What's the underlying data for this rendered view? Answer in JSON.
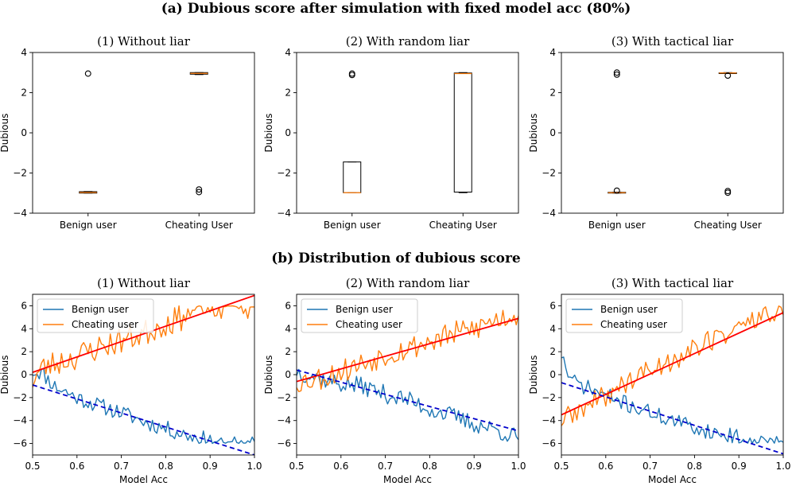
{
  "figure": {
    "title_a": "(a) Dubious score after simulation with fixed model acc (80%)",
    "title_b": "(b) Distribution of dubious score"
  },
  "colors": {
    "benign": "#1f77b4",
    "cheating": "#ff7f0e",
    "median": "#ff7f0e",
    "fit_cheating": "#ff0000",
    "fit_benign": "#0000cc"
  },
  "chart_data": [
    {
      "type": "box",
      "id": "a1",
      "title": "(1) Without liar",
      "xlabel": "",
      "ylabel": "Dubious",
      "ylim": [
        -4,
        4
      ],
      "yticks": [
        "4",
        "2",
        "0",
        "−2",
        "−4"
      ],
      "ytick_values": [
        4,
        2,
        0,
        -2,
        -4
      ],
      "categories": [
        "Benign user",
        "Cheating User"
      ],
      "boxes": [
        {
          "q1": -3.0,
          "median": -2.97,
          "q3": -2.93,
          "whislo": -3.0,
          "whishi": -2.92,
          "fliers": [
            2.95
          ]
        },
        {
          "q1": 2.92,
          "median": 2.96,
          "q3": 3.0,
          "whislo": 2.9,
          "whishi": 3.0,
          "fliers": [
            -2.82,
            -2.95
          ]
        }
      ]
    },
    {
      "type": "box",
      "id": "a2",
      "title": "(2) With random liar",
      "xlabel": "",
      "ylabel": "Dubious",
      "ylim": [
        -4,
        4
      ],
      "yticks": [
        "4",
        "2",
        "0",
        "−2",
        "−4"
      ],
      "ytick_values": [
        4,
        2,
        0,
        -2,
        -4
      ],
      "categories": [
        "Benign user",
        "Cheating User"
      ],
      "boxes": [
        {
          "q1": -2.98,
          "median": -2.98,
          "q3": -1.45,
          "whislo": -2.98,
          "whishi": -1.45,
          "fliers": [
            2.88,
            2.95
          ]
        },
        {
          "q1": -2.95,
          "median": 2.95,
          "q3": 2.98,
          "whislo": -2.98,
          "whishi": 3.0,
          "fliers": []
        }
      ]
    },
    {
      "type": "box",
      "id": "a3",
      "title": "(3) With tactical liar",
      "xlabel": "",
      "ylabel": "Dubious",
      "ylim": [
        -4,
        4
      ],
      "yticks": [
        "4",
        "2",
        "0",
        "−2",
        "−4"
      ],
      "ytick_values": [
        4,
        2,
        0,
        -2,
        -4
      ],
      "categories": [
        "Benign user",
        "Cheating User"
      ],
      "boxes": [
        {
          "q1": -3.0,
          "median": -2.98,
          "q3": -2.96,
          "whislo": -3.0,
          "whishi": -2.95,
          "fliers": [
            2.9,
            3.0,
            -2.88
          ]
        },
        {
          "q1": 2.97,
          "median": 2.98,
          "q3": 2.99,
          "whislo": 2.96,
          "whishi": 3.0,
          "fliers": [
            2.85,
            -2.9,
            -2.98
          ]
        }
      ]
    },
    {
      "type": "line",
      "id": "b1",
      "title": "(1) Without liar",
      "xlabel": "Model Acc",
      "ylabel": "Dubious",
      "xlim": [
        0.5,
        1.0
      ],
      "ylim": [
        -7,
        7
      ],
      "xticks": [
        "0.5",
        "0.6",
        "0.7",
        "0.8",
        "0.9",
        "1.0"
      ],
      "xtick_values": [
        0.5,
        0.6,
        0.7,
        0.8,
        0.9,
        1.0
      ],
      "yticks": [
        "6",
        "4",
        "2",
        "0",
        "−2",
        "−4",
        "−6"
      ],
      "ytick_values": [
        6,
        4,
        2,
        0,
        -2,
        -4,
        -6
      ],
      "legend": [
        "Benign user",
        "Cheating user"
      ],
      "legend_loc": "upper-left",
      "series": [
        {
          "name": "Benign user",
          "kind": "benign",
          "x_start": 0.5,
          "x_end": 1.0,
          "keys": [
            [
              0.5,
              0.3
            ],
            [
              0.52,
              0.2
            ],
            [
              0.55,
              -1.0
            ],
            [
              0.6,
              -2.0
            ],
            [
              0.65,
              -2.7
            ],
            [
              0.7,
              -3.3
            ],
            [
              0.75,
              -4.1
            ],
            [
              0.8,
              -4.7
            ],
            [
              0.85,
              -5.3
            ],
            [
              0.9,
              -5.7
            ],
            [
              0.92,
              -6.0
            ],
            [
              1.0,
              -6.0
            ]
          ],
          "noise": 0.7,
          "seed": 11
        },
        {
          "name": "Cheating user",
          "kind": "cheating",
          "x_start": 0.5,
          "x_end": 1.0,
          "keys": [
            [
              0.5,
              -0.5
            ],
            [
              0.52,
              0.5
            ],
            [
              0.55,
              1.0
            ],
            [
              0.6,
              1.6
            ],
            [
              0.65,
              2.4
            ],
            [
              0.7,
              3.0
            ],
            [
              0.75,
              3.6
            ],
            [
              0.8,
              4.5
            ],
            [
              0.85,
              5.2
            ],
            [
              0.88,
              5.7
            ],
            [
              0.9,
              6.0
            ],
            [
              0.95,
              6.0
            ],
            [
              1.0,
              6.0
            ]
          ],
          "noise": 1.2,
          "seed": 23
        }
      ],
      "fits": [
        {
          "kind": "cheating",
          "style": "solid",
          "x": [
            0.5,
            1.0
          ],
          "y": [
            0.2,
            6.9
          ]
        },
        {
          "kind": "benign",
          "style": "dashed",
          "x": [
            0.5,
            1.0
          ],
          "y": [
            -0.9,
            -7.0
          ]
        }
      ]
    },
    {
      "type": "line",
      "id": "b2",
      "title": "(2) With random liar",
      "xlabel": "Model Acc",
      "ylabel": "Dubious",
      "xlim": [
        0.5,
        1.0
      ],
      "ylim": [
        -7,
        7
      ],
      "xticks": [
        "0.5",
        "0.6",
        "0.7",
        "0.8",
        "0.9",
        "1.0"
      ],
      "xtick_values": [
        0.5,
        0.6,
        0.7,
        0.8,
        0.9,
        1.0
      ],
      "yticks": [
        "6",
        "4",
        "2",
        "0",
        "−2",
        "−4",
        "−6"
      ],
      "ytick_values": [
        6,
        4,
        2,
        0,
        -2,
        -4,
        -6
      ],
      "legend": [
        "Benign user",
        "Cheating user"
      ],
      "legend_loc": "upper-left",
      "series": [
        {
          "name": "Benign user",
          "kind": "benign",
          "x_start": 0.5,
          "x_end": 1.0,
          "keys": [
            [
              0.5,
              0.3
            ],
            [
              0.55,
              -0.3
            ],
            [
              0.6,
              -0.8
            ],
            [
              0.65,
              -1.0
            ],
            [
              0.7,
              -1.7
            ],
            [
              0.75,
              -2.2
            ],
            [
              0.8,
              -3.0
            ],
            [
              0.85,
              -3.6
            ],
            [
              0.9,
              -4.3
            ],
            [
              0.95,
              -4.8
            ],
            [
              1.0,
              -5.5
            ]
          ],
          "noise": 0.8,
          "seed": 37
        },
        {
          "name": "Cheating user",
          "kind": "cheating",
          "x_start": 0.5,
          "x_end": 1.0,
          "keys": [
            [
              0.5,
              -0.6
            ],
            [
              0.55,
              -0.3
            ],
            [
              0.6,
              0.3
            ],
            [
              0.65,
              1.0
            ],
            [
              0.7,
              1.8
            ],
            [
              0.75,
              2.3
            ],
            [
              0.8,
              2.9
            ],
            [
              0.85,
              3.5
            ],
            [
              0.9,
              4.0
            ],
            [
              0.95,
              4.8
            ],
            [
              1.0,
              5.3
            ]
          ],
          "noise": 1.1,
          "seed": 53
        }
      ],
      "fits": [
        {
          "kind": "cheating",
          "style": "solid",
          "x": [
            0.5,
            1.0
          ],
          "y": [
            -0.6,
            4.9
          ]
        },
        {
          "kind": "benign",
          "style": "dashed",
          "x": [
            0.5,
            1.0
          ],
          "y": [
            0.4,
            -4.9
          ]
        }
      ]
    },
    {
      "type": "line",
      "id": "b3",
      "title": "(3) With tactical liar",
      "xlabel": "Model Acc",
      "ylabel": "Dubious",
      "xlim": [
        0.5,
        1.0
      ],
      "ylim": [
        -7,
        7
      ],
      "xticks": [
        "0.5",
        "0.6",
        "0.7",
        "0.8",
        "0.9",
        "1.0"
      ],
      "xtick_values": [
        0.5,
        0.6,
        0.7,
        0.8,
        0.9,
        1.0
      ],
      "yticks": [
        "6",
        "4",
        "2",
        "0",
        "−2",
        "−4",
        "−6"
      ],
      "ytick_values": [
        6,
        4,
        2,
        0,
        -2,
        -4,
        -6
      ],
      "legend": [
        "Benign user",
        "Cheating user"
      ],
      "legend_loc": "upper-left",
      "series": [
        {
          "name": "Benign user",
          "kind": "benign",
          "x_start": 0.5,
          "x_end": 1.0,
          "keys": [
            [
              0.5,
              1.8
            ],
            [
              0.52,
              -0.5
            ],
            [
              0.55,
              -1.0
            ],
            [
              0.6,
              -1.8
            ],
            [
              0.65,
              -2.6
            ],
            [
              0.7,
              -3.3
            ],
            [
              0.75,
              -4.0
            ],
            [
              0.8,
              -4.6
            ],
            [
              0.85,
              -5.1
            ],
            [
              0.9,
              -5.5
            ],
            [
              0.95,
              -5.8
            ],
            [
              1.0,
              -6.0
            ]
          ],
          "noise": 0.7,
          "seed": 71
        },
        {
          "name": "Cheating user",
          "kind": "cheating",
          "x_start": 0.5,
          "x_end": 1.0,
          "keys": [
            [
              0.5,
              -4.0
            ],
            [
              0.55,
              -3.0
            ],
            [
              0.6,
              -1.8
            ],
            [
              0.65,
              -0.6
            ],
            [
              0.7,
              0.4
            ],
            [
              0.75,
              1.3
            ],
            [
              0.8,
              2.3
            ],
            [
              0.85,
              3.2
            ],
            [
              0.9,
              4.2
            ],
            [
              0.95,
              5.0
            ],
            [
              1.0,
              5.9
            ]
          ],
          "noise": 1.0,
          "seed": 89
        }
      ],
      "fits": [
        {
          "kind": "cheating",
          "style": "solid",
          "x": [
            0.5,
            1.0
          ],
          "y": [
            -3.5,
            5.4
          ]
        },
        {
          "kind": "benign",
          "style": "dashed",
          "x": [
            0.5,
            1.0
          ],
          "y": [
            -0.7,
            -6.9
          ]
        }
      ]
    }
  ]
}
